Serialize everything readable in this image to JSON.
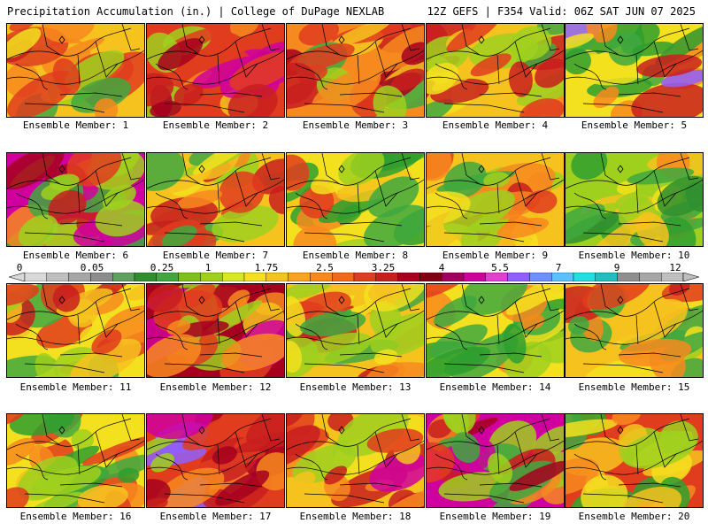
{
  "header": {
    "title": "Precipitation Accumulation (in.) | College of DuPage NEXLAB",
    "run_info": "12Z GEFS | F354 Valid: 06Z SAT JUN 07 2025"
  },
  "panels": [
    {
      "label": "Ensemble Member: 1",
      "palette": [
        "#c81e1e",
        "#e03c1e",
        "#f78a1e",
        "#f6c31e",
        "#f3e01e",
        "#9fd01e",
        "#3fa83f"
      ]
    },
    {
      "label": "Ensemble Member: 2",
      "palette": [
        "#d0009f",
        "#a6001e",
        "#c81e1e",
        "#e03c1e",
        "#f78a1e",
        "#f6c31e",
        "#9fd01e"
      ]
    },
    {
      "label": "Ensemble Member: 3",
      "palette": [
        "#a6001e",
        "#c81e1e",
        "#e03c1e",
        "#f78a1e",
        "#f6c31e",
        "#9fd01e",
        "#3fa83f"
      ]
    },
    {
      "label": "Ensemble Member: 4",
      "palette": [
        "#c81e1e",
        "#e03c1e",
        "#f78a1e",
        "#f6c31e",
        "#f3e01e",
        "#9fd01e",
        "#3fa83f"
      ]
    },
    {
      "label": "Ensemble Member: 5",
      "palette": [
        "#2f9f2f",
        "#3fa83f",
        "#9fd01e",
        "#f3e01e",
        "#f78a1e",
        "#c81e1e",
        "#8f5fff"
      ]
    },
    {
      "label": "Ensemble Member: 6",
      "palette": [
        "#c81e1e",
        "#e03c1e",
        "#a6001e",
        "#d0009f",
        "#f78a1e",
        "#9fd01e",
        "#3fa83f"
      ]
    },
    {
      "label": "Ensemble Member: 7",
      "palette": [
        "#f78a1e",
        "#e03c1e",
        "#c81e1e",
        "#f6c31e",
        "#f3e01e",
        "#9fd01e",
        "#3fa83f"
      ]
    },
    {
      "label": "Ensemble Member: 8",
      "palette": [
        "#2f9f2f",
        "#3fa83f",
        "#9fd01e",
        "#f3e01e",
        "#f6c31e",
        "#f78a1e",
        "#e03c1e"
      ]
    },
    {
      "label": "Ensemble Member: 9",
      "palette": [
        "#3fa83f",
        "#9fd01e",
        "#f3e01e",
        "#f6c31e",
        "#f78a1e",
        "#e03c1e",
        "#c81e1e"
      ]
    },
    {
      "label": "Ensemble Member: 10",
      "palette": [
        "#2f8f2f",
        "#2f9f2f",
        "#3fa83f",
        "#9fd01e",
        "#f3e01e",
        "#f6c31e",
        "#f78a1e"
      ]
    },
    {
      "label": "Ensemble Member: 11",
      "palette": [
        "#f6c31e",
        "#f78a1e",
        "#e03c1e",
        "#f3e01e",
        "#c81e1e",
        "#9fd01e",
        "#3fa83f"
      ]
    },
    {
      "label": "Ensemble Member: 12",
      "palette": [
        "#c81e1e",
        "#e03c1e",
        "#d0009f",
        "#a6001e",
        "#f78a1e",
        "#f6c31e",
        "#9fd01e"
      ]
    },
    {
      "label": "Ensemble Member: 13",
      "palette": [
        "#f78a1e",
        "#e03c1e",
        "#c81e1e",
        "#f6c31e",
        "#f3e01e",
        "#9fd01e",
        "#3fa83f"
      ]
    },
    {
      "label": "Ensemble Member: 14",
      "palette": [
        "#2f9f2f",
        "#3fa83f",
        "#9fd01e",
        "#f3e01e",
        "#f6c31e",
        "#f78a1e",
        "#e03c1e"
      ]
    },
    {
      "label": "Ensemble Member: 15",
      "palette": [
        "#3fa83f",
        "#9fd01e",
        "#f3e01e",
        "#f6c31e",
        "#f78a1e",
        "#e03c1e",
        "#c81e1e"
      ]
    },
    {
      "label": "Ensemble Member: 16",
      "palette": [
        "#2f9f2f",
        "#3fa83f",
        "#9fd01e",
        "#f3e01e",
        "#f6c31e",
        "#f78a1e",
        "#e03c1e"
      ]
    },
    {
      "label": "Ensemble Member: 17",
      "palette": [
        "#a6001e",
        "#c81e1e",
        "#d0009f",
        "#e03c1e",
        "#8f5fff",
        "#f78a1e",
        "#9fd01e"
      ]
    },
    {
      "label": "Ensemble Member: 18",
      "palette": [
        "#e03c1e",
        "#c81e1e",
        "#f78a1e",
        "#f6c31e",
        "#d0009f",
        "#f3e01e",
        "#9fd01e"
      ]
    },
    {
      "label": "Ensemble Member: 19",
      "palette": [
        "#c81e1e",
        "#a6001e",
        "#e03c1e",
        "#d0009f",
        "#f78a1e",
        "#3fa83f",
        "#9fd01e"
      ]
    },
    {
      "label": "Ensemble Member: 20",
      "palette": [
        "#f6c31e",
        "#f78a1e",
        "#9fd01e",
        "#e03c1e",
        "#f3e01e",
        "#3fa83f",
        "#2f9f2f"
      ]
    }
  ],
  "scale": {
    "labels": [
      "0",
      "0.05",
      "0.25",
      "1",
      "1.75",
      "2.5",
      "3.25",
      "4",
      "5.5",
      "7",
      "9",
      "12"
    ],
    "colors": [
      "#d9d9d9",
      "#bfbfbf",
      "#a6a6a6",
      "#8c8c8c",
      "#5f9f5f",
      "#2f8f2f",
      "#3fa83f",
      "#7fbf1e",
      "#9fd01e",
      "#d8e81e",
      "#f3e01e",
      "#f6c31e",
      "#f7a51e",
      "#f78a1e",
      "#f06a1e",
      "#e03c1e",
      "#c81e1e",
      "#a6001e",
      "#7f0010",
      "#a0005f",
      "#d0009f",
      "#e040d0",
      "#8f5fff",
      "#6f8fff",
      "#5fbfff",
      "#1fe0e0",
      "#1fbfbf",
      "#8f8f8f",
      "#a6a6a6",
      "#bfbfbf"
    ]
  }
}
